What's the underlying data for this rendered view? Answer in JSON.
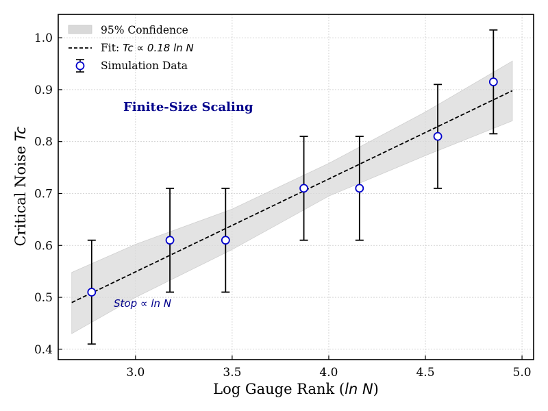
{
  "chart_data": {
    "type": "scatter",
    "title": "Finite-Size Scaling",
    "xlabel": "Log Gauge Rank (",
    "xlabel_math": "ln N",
    "xlabel_close": ")",
    "ylabel": "Critical Noise ",
    "ylabel_math": "Tc",
    "xlim": [
      2.6,
      5.06
    ],
    "ylim": [
      0.38,
      1.045
    ],
    "xticks": [
      3.0,
      3.5,
      4.0,
      4.5,
      5.0
    ],
    "xtick_labels": [
      "3.0",
      "3.5",
      "4.0",
      "4.5",
      "5.0"
    ],
    "yticks": [
      0.4,
      0.5,
      0.6,
      0.7,
      0.8,
      0.9,
      1.0
    ],
    "ytick_labels": [
      "0.4",
      "0.5",
      "0.6",
      "0.7",
      "0.8",
      "0.9",
      "1.0"
    ],
    "grid": true,
    "series": [
      {
        "name": "Simulation Data",
        "x": [
          2.773,
          3.178,
          3.466,
          3.871,
          4.159,
          4.564,
          4.852
        ],
        "y": [
          0.51,
          0.61,
          0.61,
          0.71,
          0.71,
          0.81,
          0.915
        ],
        "yerr": [
          0.1,
          0.1,
          0.1,
          0.1,
          0.1,
          0.1,
          0.1
        ],
        "marker_edge": "#0000cc",
        "marker_face": "#ffffff",
        "errbar_color": "#000000"
      }
    ],
    "fit": {
      "name": "Fit: Tc ∝ 0.18 ln N",
      "x": [
        2.67,
        4.95
      ],
      "y": [
        0.49,
        0.898
      ],
      "color": "#000000",
      "style": "dashed"
    },
    "confidence_band": {
      "name": "95% Confidence",
      "x": [
        2.67,
        3.0,
        3.5,
        4.0,
        4.5,
        4.95
      ],
      "upper": [
        0.548,
        0.602,
        0.67,
        0.758,
        0.857,
        0.955
      ],
      "lower": [
        0.43,
        0.5,
        0.592,
        0.695,
        0.773,
        0.84
      ],
      "color": "#d9d9d9"
    },
    "legend": {
      "position": "top-left",
      "entries": [
        {
          "label": "95% Confidence"
        },
        {
          "label": "Fit: ",
          "math": "Tc ∝ 0.18 ln N"
        },
        {
          "label": "Simulation Data"
        }
      ]
    },
    "annotations": [
      {
        "text": "Stop ∝ ln N"
      }
    ]
  }
}
